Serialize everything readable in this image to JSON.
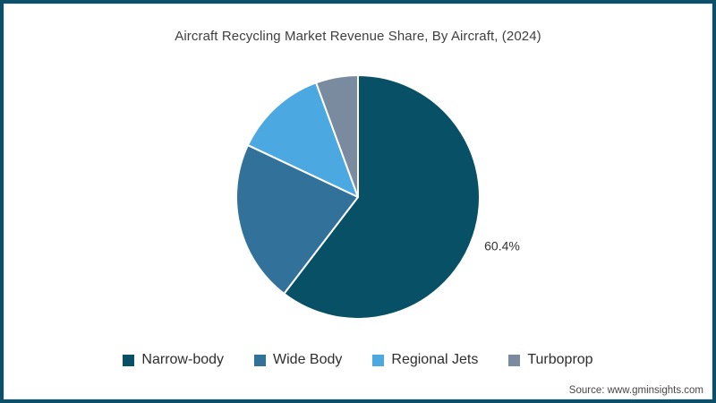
{
  "chart_data": {
    "type": "pie",
    "title": "Aircraft Recycling Market Revenue Share, By Aircraft, (2024)",
    "categories": [
      "Narrow-body",
      "Wide Body",
      "Regional Jets",
      "Turboprop"
    ],
    "values": [
      60.4,
      21.6,
      12.4,
      5.6
    ],
    "data_labels": [
      "60.4%",
      "",
      "",
      ""
    ],
    "colors": [
      "#075066",
      "#31719A",
      "#4BA8E0",
      "#7A8BA0"
    ],
    "start_angle_deg": 0,
    "direction": "clockwise",
    "legend_position": "bottom",
    "note": "Only the Narrow-body slice is labeled (60.4%); other values estimated from slice angles"
  },
  "source": "Source: www.gminsights.com",
  "frame": {
    "border_color": "#0D4F68",
    "background": "#ffffff",
    "slice_separator_color": "#ffffff"
  }
}
